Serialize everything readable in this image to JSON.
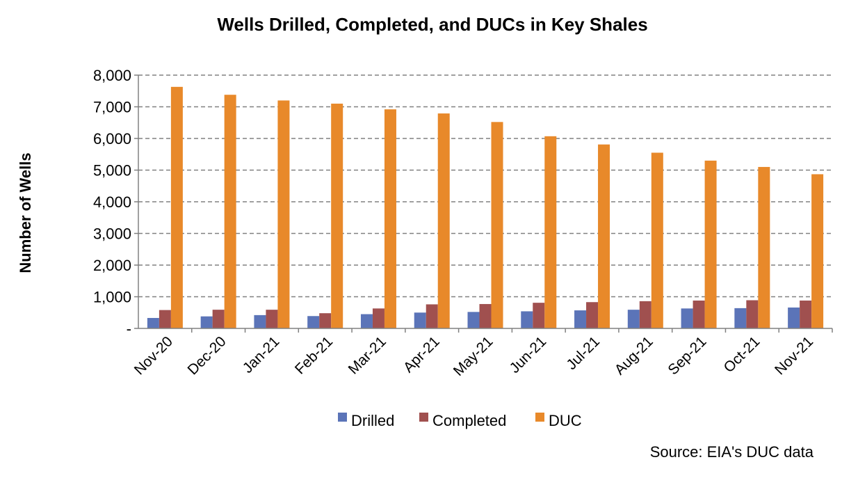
{
  "chart_data": {
    "type": "bar",
    "title": "Wells Drilled, Completed, and DUCs in Key Shales",
    "ylabel": "Number of Wells",
    "xlabel": "",
    "categories": [
      "Nov-20",
      "Dec-20",
      "Jan-21",
      "Feb-21",
      "Mar-21",
      "Apr-21",
      "May-21",
      "Jun-21",
      "Jul-21",
      "Aug-21",
      "Sep-21",
      "Oct-21",
      "Nov-21"
    ],
    "series": [
      {
        "name": "Drilled",
        "color": "#5b74b8",
        "values": [
          330,
          380,
          420,
          390,
          450,
          500,
          520,
          540,
          570,
          590,
          630,
          640,
          660
        ]
      },
      {
        "name": "Completed",
        "color": "#a0504f",
        "values": [
          580,
          590,
          590,
          480,
          630,
          760,
          770,
          810,
          830,
          860,
          880,
          890,
          880
        ]
      },
      {
        "name": "DUC",
        "color": "#e8892a",
        "values": [
          7630,
          7380,
          7200,
          7100,
          6920,
          6790,
          6520,
          6070,
          5810,
          5550,
          5300,
          5100,
          4870
        ]
      }
    ],
    "ylim": [
      0,
      8000
    ],
    "yticks": [
      0,
      1000,
      2000,
      3000,
      4000,
      5000,
      6000,
      7000,
      8000
    ],
    "ytick_labels": [
      "-",
      "1,000",
      "2,000",
      "3,000",
      "4,000",
      "5,000",
      "6,000",
      "7,000",
      "8,000"
    ],
    "grid": true,
    "legend_position": "bottom",
    "annotation": "Source: EIA's DUC data"
  }
}
